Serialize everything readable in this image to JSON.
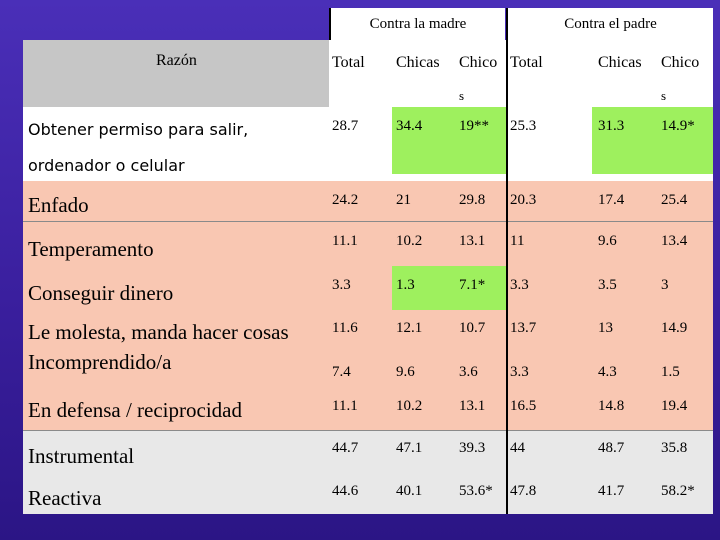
{
  "table": {
    "group_headers": [
      "Contra la madre",
      "Contra el padre"
    ],
    "razon_header": "Razón",
    "col_headers": [
      "Total",
      "Chicas",
      "Chico",
      "Total",
      "Chicas",
      "Chico"
    ],
    "col_header_suffix": [
      "s",
      "s"
    ],
    "rows": [
      {
        "label": [
          "Obtener permiso para salir,",
          "ordenador o celular"
        ],
        "values": [
          "28.7",
          "34.4",
          "19**",
          "25.3",
          "31.3",
          "14.9*"
        ]
      },
      {
        "label": [
          "Enfado"
        ],
        "values": [
          "24.2",
          "21",
          "29.8",
          "20.3",
          "17.4",
          "25.4"
        ]
      },
      {
        "label": [
          "Temperamento"
        ],
        "values": [
          "11.1",
          "10.2",
          "13.1",
          "11",
          "9.6",
          "13.4"
        ]
      },
      {
        "label": [
          "Conseguir dinero"
        ],
        "values": [
          "3.3",
          "1.3",
          "7.1*",
          "3.3",
          "3.5",
          "3"
        ]
      },
      {
        "label": [
          "Le molesta, manda hacer cosas"
        ],
        "values": [
          "11.6",
          "12.1",
          "10.7",
          "13.7",
          "13",
          "14.9"
        ]
      },
      {
        "label": [
          "Incomprendido/a"
        ],
        "values": [
          "7.4",
          "9.6",
          "3.6",
          "3.3",
          "4.3",
          "1.5"
        ]
      },
      {
        "label": [
          "En defensa / reciprocidad"
        ],
        "values": [
          "11.1",
          "10.2",
          "13.1",
          "16.5",
          "14.8",
          "19.4"
        ]
      },
      {
        "label": [
          "Instrumental"
        ],
        "values": [
          "44.7",
          "47.1",
          "39.3",
          "44",
          "48.7",
          "35.8"
        ]
      },
      {
        "label": [
          "Reactiva"
        ],
        "values": [
          "44.6",
          "40.1",
          "53.6*",
          "47.8",
          "41.7",
          "58.2*"
        ]
      }
    ]
  },
  "colors": {
    "background": "#3a1f9e",
    "peach": "#f9c7b2",
    "gray": "#e8e8e8",
    "green_highlight": "#9ef05e",
    "header_gray": "#c6c6c6"
  }
}
